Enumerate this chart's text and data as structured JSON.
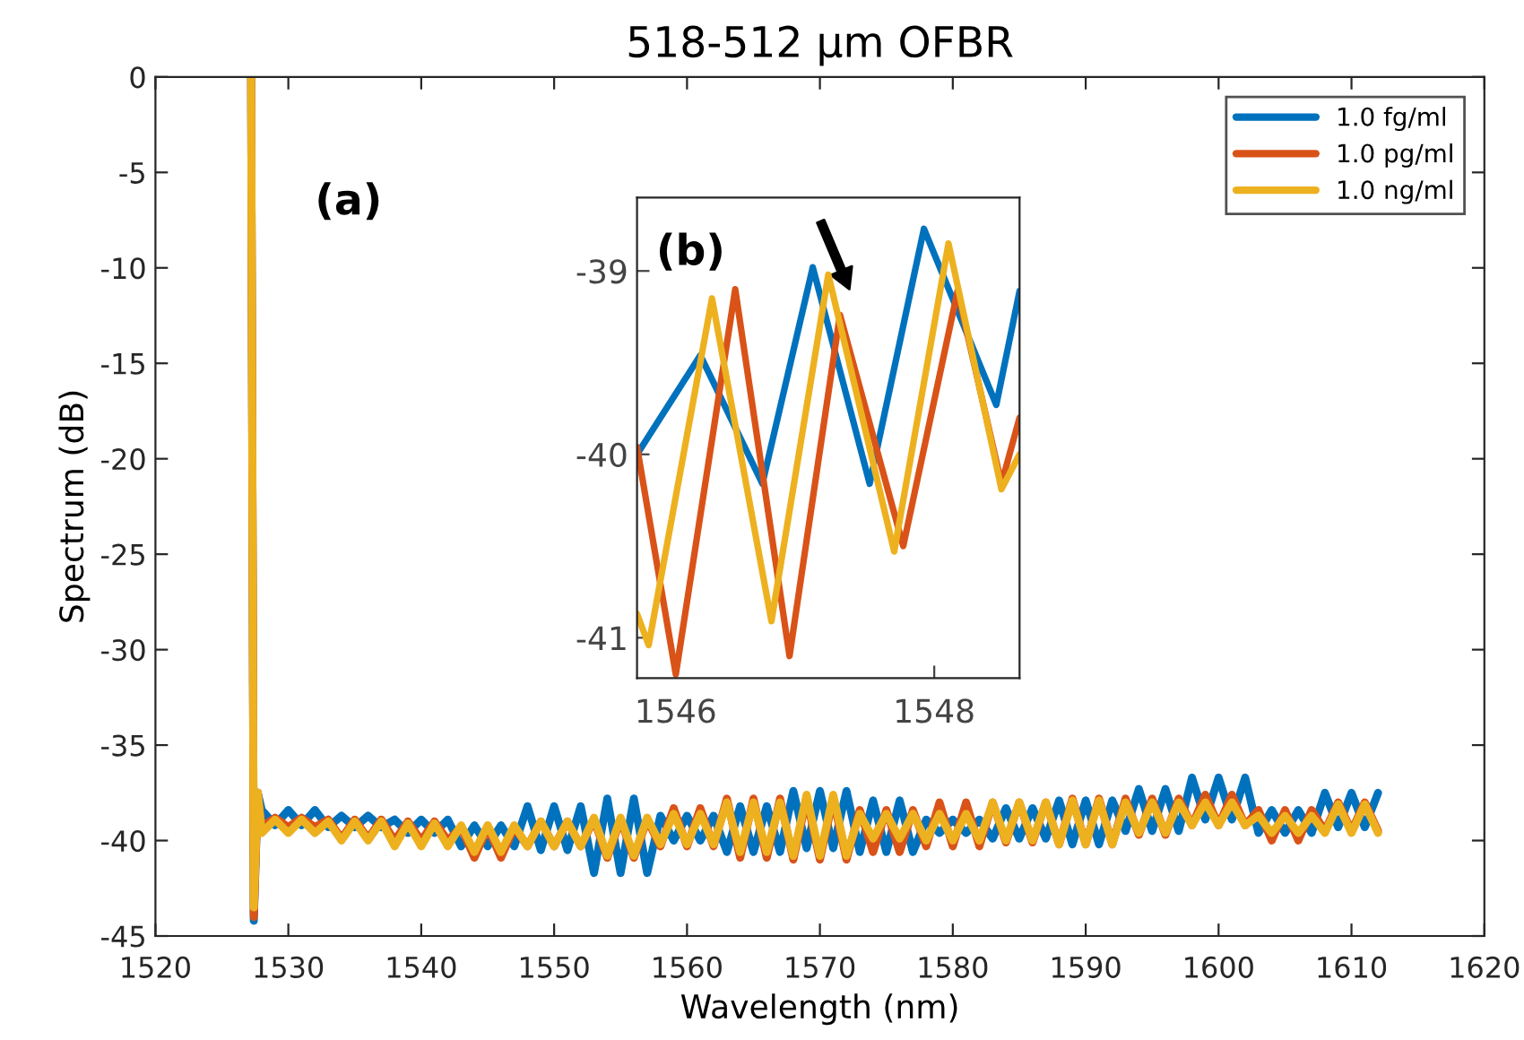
{
  "chart_data": [
    {
      "type": "line",
      "title": "518-512 µm OFBR",
      "xlabel": "Wavelength (nm)",
      "ylabel": "Spectrum (dB)",
      "xlim": [
        1520,
        1620
      ],
      "ylim": [
        -45,
        0
      ],
      "xticks": [
        1520,
        1530,
        1540,
        1550,
        1560,
        1570,
        1580,
        1590,
        1600,
        1610,
        1620
      ],
      "yticks": [
        -45,
        -40,
        -35,
        -30,
        -25,
        -20,
        -15,
        -10,
        -5,
        0
      ],
      "grid": false,
      "legend": "top right",
      "annotations": [
        "(a)"
      ],
      "x": [
        1527.2,
        1527.4,
        1527.7,
        1528,
        1529,
        1530,
        1531,
        1532,
        1533,
        1534,
        1535,
        1536,
        1537,
        1538,
        1539,
        1540,
        1541,
        1542,
        1543,
        1544,
        1545,
        1546,
        1547,
        1548,
        1549,
        1550,
        1551,
        1552,
        1553,
        1554,
        1555,
        1556,
        1557,
        1558,
        1559,
        1560,
        1561,
        1562,
        1563,
        1564,
        1565,
        1566,
        1567,
        1568,
        1569,
        1570,
        1571,
        1572,
        1573,
        1574,
        1575,
        1576,
        1577,
        1578,
        1579,
        1580,
        1581,
        1582,
        1583,
        1584,
        1585,
        1586,
        1587,
        1588,
        1589,
        1590,
        1591,
        1592,
        1593,
        1594,
        1595,
        1596,
        1597,
        1598,
        1599,
        1600,
        1601,
        1602,
        1603,
        1604,
        1605,
        1606,
        1607,
        1608,
        1609,
        1610,
        1611,
        1612
      ],
      "series": [
        {
          "name": "1.0 fg/ml",
          "color": "#0072bd",
          "values": [
            0,
            -44.2,
            -37.5,
            -38.4,
            -39.2,
            -38.4,
            -39.2,
            -38.4,
            -39.3,
            -38.7,
            -39.3,
            -38.7,
            -39.3,
            -38.9,
            -39.6,
            -38.9,
            -39.6,
            -38.9,
            -40.3,
            -39.2,
            -40.3,
            -39.2,
            -40.3,
            -38.2,
            -40.5,
            -38.2,
            -40.5,
            -38.2,
            -41.7,
            -37.8,
            -41.7,
            -37.8,
            -41.7,
            -38.7,
            -40.0,
            -38.7,
            -40.0,
            -38.7,
            -40.6,
            -38.2,
            -40.6,
            -38.2,
            -40.6,
            -37.4,
            -40.4,
            -37.4,
            -40.4,
            -37.4,
            -40.6,
            -37.9,
            -40.6,
            -37.9,
            -40.6,
            -38.9,
            -39.6,
            -38.9,
            -39.6,
            -38.9,
            -39.9,
            -38.3,
            -39.9,
            -38.3,
            -39.9,
            -37.9,
            -40.2,
            -37.9,
            -40.2,
            -37.9,
            -39.5,
            -37.3,
            -39.5,
            -37.3,
            -39.5,
            -36.7,
            -38.9,
            -36.7,
            -38.9,
            -36.7,
            -39.6,
            -38.4,
            -39.6,
            -38.4,
            -39.6,
            -37.5,
            -39.3,
            -37.5,
            -39.3,
            -37.5
          ]
        },
        {
          "name": "1.0 pg/ml",
          "color": "#d95319",
          "values": [
            0,
            -44.0,
            -37.5,
            -39.3,
            -38.8,
            -39.3,
            -38.8,
            -39.3,
            -38.9,
            -39.9,
            -38.9,
            -39.9,
            -38.9,
            -40.0,
            -39.0,
            -40.0,
            -39.0,
            -40.0,
            -39.3,
            -40.9,
            -39.3,
            -40.9,
            -39.3,
            -40.3,
            -39.0,
            -40.3,
            -39.0,
            -40.3,
            -38.9,
            -40.9,
            -38.9,
            -40.9,
            -38.9,
            -40.3,
            -38.3,
            -40.3,
            -38.3,
            -40.3,
            -37.8,
            -40.9,
            -37.8,
            -40.9,
            -37.8,
            -41.0,
            -37.8,
            -41.0,
            -37.8,
            -41.0,
            -38.4,
            -40.6,
            -38.4,
            -40.6,
            -38.4,
            -40.3,
            -38.0,
            -40.3,
            -38.0,
            -40.3,
            -38.0,
            -40.1,
            -38.0,
            -40.1,
            -38.0,
            -40.2,
            -37.8,
            -40.2,
            -37.8,
            -40.2,
            -37.8,
            -39.7,
            -37.8,
            -39.7,
            -37.8,
            -39.2,
            -37.6,
            -39.2,
            -37.6,
            -39.2,
            -38.4,
            -40.0,
            -38.4,
            -40.0,
            -38.4,
            -39.5,
            -38.0,
            -39.5,
            -38.0,
            -39.5
          ]
        },
        {
          "name": "1.0 ng/ml",
          "color": "#edb120",
          "values": [
            0,
            -43.5,
            -37.5,
            -39.6,
            -38.9,
            -39.6,
            -38.9,
            -39.6,
            -39.0,
            -40.0,
            -39.0,
            -40.0,
            -39.0,
            -40.3,
            -39.1,
            -40.3,
            -39.1,
            -40.3,
            -39.2,
            -40.6,
            -39.2,
            -40.6,
            -39.2,
            -40.3,
            -39.0,
            -40.3,
            -39.0,
            -40.3,
            -38.8,
            -40.8,
            -38.8,
            -40.8,
            -38.8,
            -40.2,
            -38.6,
            -40.2,
            -38.6,
            -40.2,
            -38.0,
            -40.6,
            -38.0,
            -40.6,
            -38.0,
            -40.8,
            -37.6,
            -40.8,
            -37.6,
            -40.8,
            -38.6,
            -39.9,
            -38.6,
            -39.9,
            -38.6,
            -40.0,
            -38.6,
            -40.0,
            -38.6,
            -40.0,
            -38.0,
            -40.0,
            -38.0,
            -40.0,
            -38.0,
            -40.2,
            -37.9,
            -40.2,
            -37.9,
            -40.2,
            -38.0,
            -39.6,
            -38.0,
            -39.6,
            -38.0,
            -39.2,
            -38.0,
            -39.2,
            -38.0,
            -39.2,
            -38.7,
            -39.6,
            -38.7,
            -39.6,
            -38.7,
            -39.6,
            -38.1,
            -39.6,
            -38.1,
            -39.6
          ]
        }
      ]
    },
    {
      "type": "line",
      "xlim": [
        1545.7,
        1548.66
      ],
      "ylim": [
        -41.22,
        -38.6
      ],
      "xticks": [
        1546,
        1548
      ],
      "yticks": [
        -41,
        -40,
        -39
      ],
      "grid": false,
      "annotations": [
        "(b)"
      ],
      "series": [
        {
          "color": "#0072bd",
          "x": [
            1545.7,
            1546.19,
            1546.67,
            1547.06,
            1547.5,
            1547.92,
            1548.48,
            1548.66
          ],
          "values": [
            -40.0,
            -39.46,
            -40.16,
            -38.98,
            -40.16,
            -38.77,
            -39.73,
            -39.11
          ]
        },
        {
          "color": "#d95319",
          "x": [
            1545.7,
            1546.0,
            1546.46,
            1546.88,
            1547.27,
            1547.76,
            1548.18,
            1548.52,
            1548.66
          ],
          "values": [
            -39.96,
            -41.2,
            -39.1,
            -41.1,
            -39.24,
            -40.5,
            -39.11,
            -40.16,
            -39.8
          ]
        },
        {
          "color": "#edb120",
          "x": [
            1545.7,
            1545.79,
            1546.28,
            1546.74,
            1547.18,
            1547.69,
            1548.11,
            1548.52,
            1548.66
          ],
          "values": [
            -40.87,
            -41.04,
            -39.15,
            -40.91,
            -39.02,
            -40.53,
            -38.85,
            -40.19,
            -40.0
          ]
        }
      ]
    }
  ]
}
